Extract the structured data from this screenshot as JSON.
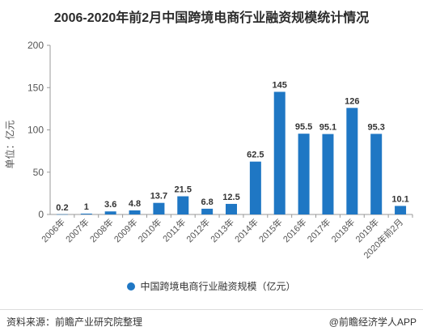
{
  "chart_data": {
    "type": "bar",
    "title": "2006-2020年前2月中国跨境电商行业融资规模统计情况",
    "ylabel": "单位：亿元",
    "ylim": [
      0,
      200
    ],
    "yticks": [
      0,
      50,
      100,
      150,
      200
    ],
    "grid": false,
    "legend_position": "bottom",
    "categories": [
      "2006年",
      "2007年",
      "2008年",
      "2009年",
      "2010年",
      "2011年",
      "2012年",
      "2013年",
      "2014年",
      "2015年",
      "2016年",
      "2017年",
      "2018年",
      "2019年",
      "2020年前2月"
    ],
    "series": [
      {
        "name": "中国跨境电商行业融资规模（亿元）",
        "color": "#1f77c4",
        "values": [
          0.2,
          1,
          3.6,
          4.8,
          13.7,
          21.5,
          6.8,
          12.5,
          62.5,
          145,
          95.5,
          95.1,
          126,
          95.3,
          10.1
        ],
        "labels": [
          "0.2",
          "1",
          "3.6",
          "4.8",
          "13.7",
          "21.5",
          "6.8",
          "12.5",
          "62.5",
          "145",
          "95.5",
          "95.1",
          "126",
          "95.3",
          "10.1"
        ]
      }
    ]
  },
  "footer": {
    "source": "资料来源：前瞻产业研究院整理",
    "brand": "@前瞻经济学人APP"
  }
}
